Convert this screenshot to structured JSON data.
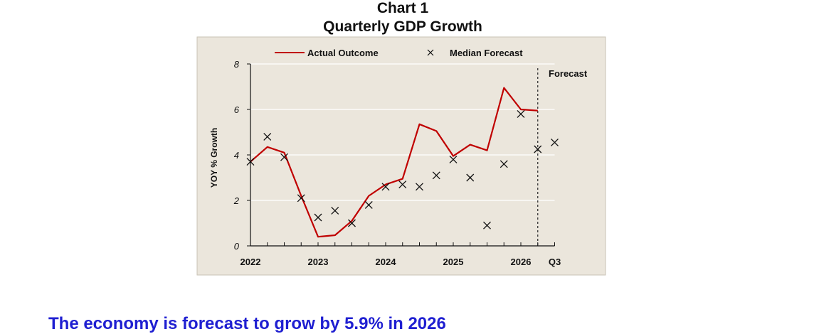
{
  "chart_data": {
    "type": "line",
    "title": "Chart 1",
    "subtitle": "Quarterly GDP Growth",
    "ylabel": "YOY % Growth",
    "xlabel": "",
    "ylim": [
      0,
      8
    ],
    "yticks": [
      0,
      2,
      4,
      6,
      8
    ],
    "x_tick_labels": [
      "2022",
      "2023",
      "2024",
      "2025",
      "2026",
      "Q3"
    ],
    "grid": true,
    "legend_position": "top",
    "annotation": "Forecast",
    "forecast_start_index": 17,
    "series": [
      {
        "name": "Actual Outcome",
        "type": "line",
        "color": "#c00000",
        "values": [
          3.7,
          4.35,
          4.1,
          2.2,
          0.4,
          0.47,
          1.1,
          2.2,
          2.7,
          2.95,
          5.35,
          5.05,
          3.95,
          4.45,
          4.2,
          6.95,
          6.0,
          5.95
        ]
      },
      {
        "name": "Median Forecast",
        "type": "scatter",
        "marker": "x",
        "color": "#111111",
        "values": [
          3.7,
          4.8,
          3.9,
          2.1,
          1.25,
          1.55,
          1.0,
          1.8,
          2.6,
          2.7,
          2.6,
          3.1,
          3.8,
          3.0,
          0.9,
          3.6,
          5.8,
          4.25,
          4.55
        ]
      }
    ]
  },
  "page": {
    "bottom_heading": "The economy is forecast to grow by 5.9% in 2026"
  }
}
